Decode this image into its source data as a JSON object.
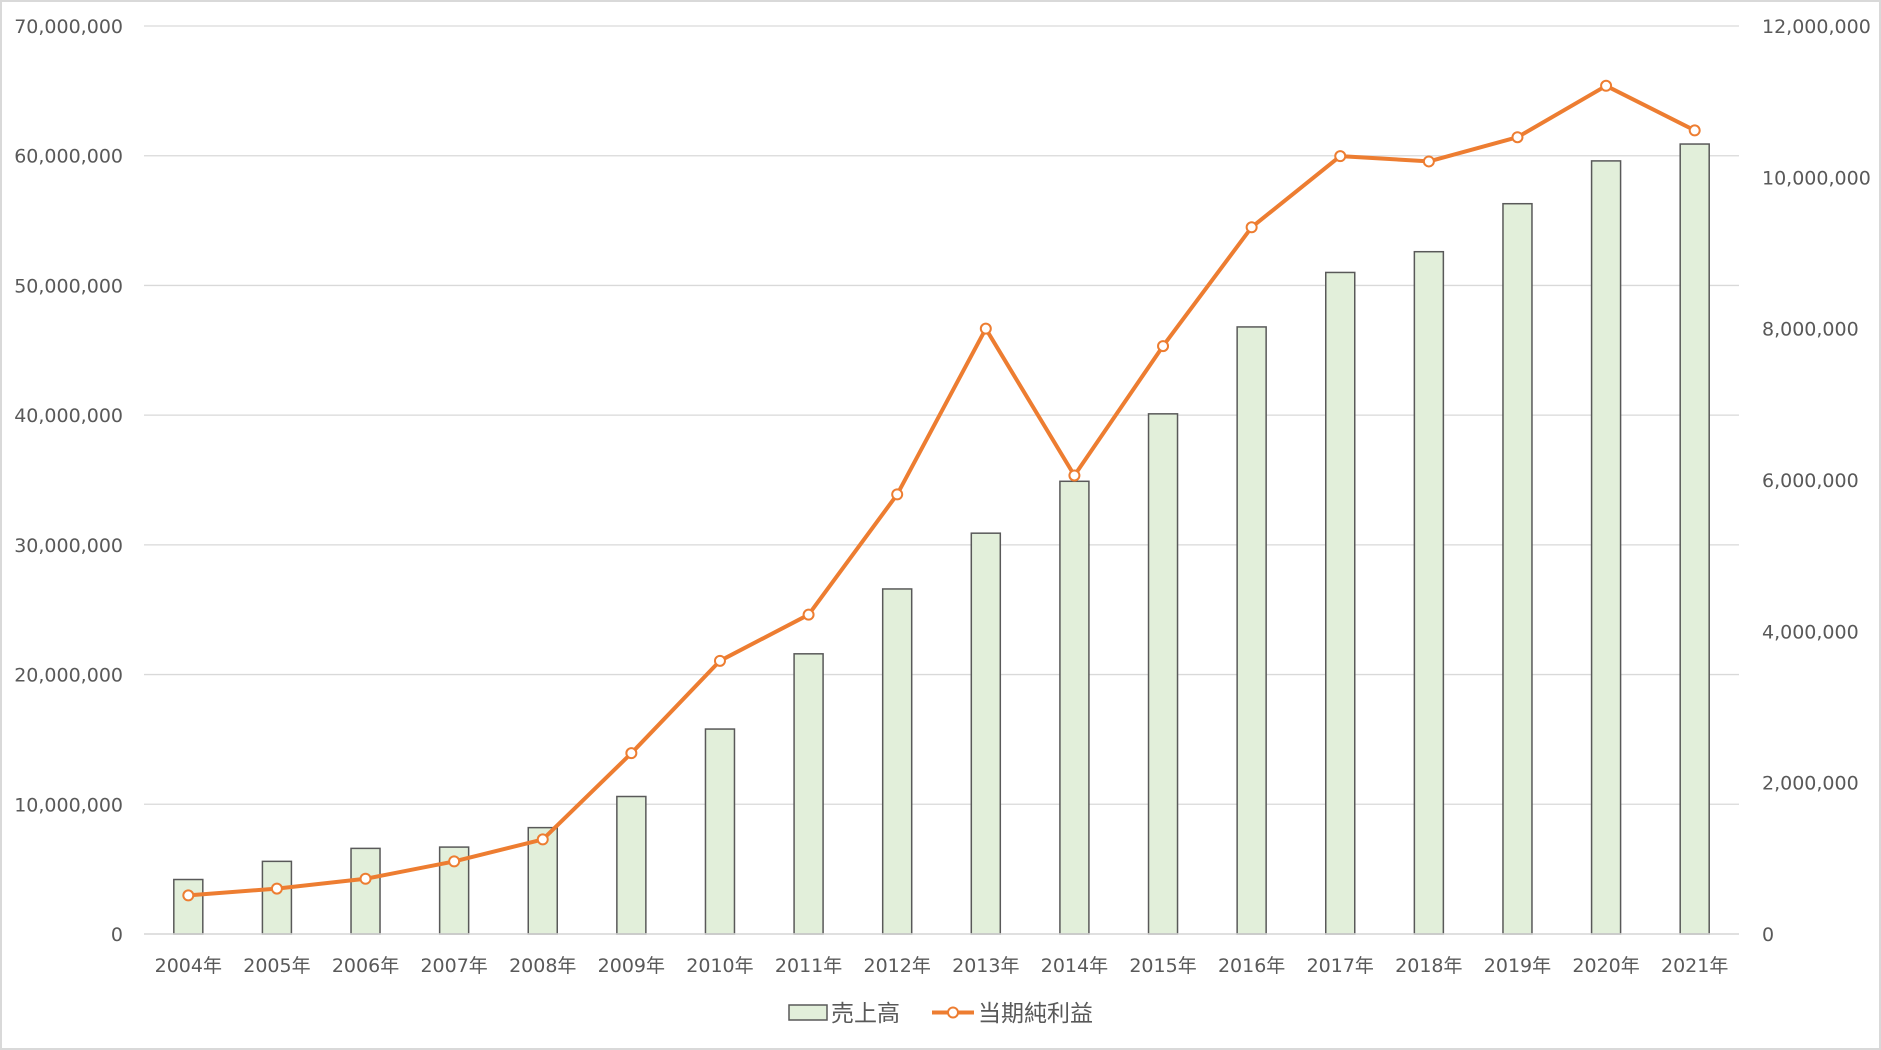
{
  "chart_data": {
    "type": "bar",
    "categories": [
      "2004年",
      "2005年",
      "2006年",
      "2007年",
      "2008年",
      "2009年",
      "2010年",
      "2011年",
      "2012年",
      "2013年",
      "2014年",
      "2015年",
      "2016年",
      "2017年",
      "2018年",
      "2019年",
      "2020年",
      "2021年"
    ],
    "series": [
      {
        "name": "売上高",
        "type": "bar",
        "axis": "left",
        "color": "#e2efda",
        "stroke": "#595959",
        "values": [
          4200000,
          5600000,
          6600000,
          6700000,
          8200000,
          10600000,
          15800000,
          21600000,
          26600000,
          30900000,
          34900000,
          40100000,
          46800000,
          51000000,
          52600000,
          56300000,
          59600000,
          60900000
        ]
      },
      {
        "name": "当期純利益",
        "type": "line",
        "axis": "right",
        "color": "#ed7d31",
        "values": [
          510000,
          600000,
          730000,
          960000,
          1250000,
          2390000,
          3610000,
          4220000,
          5810000,
          8000000,
          6060000,
          7770000,
          9340000,
          10280000,
          10210000,
          10530000,
          11210000,
          10620000
        ]
      }
    ],
    "y_left": {
      "min": 0,
      "max": 70000000,
      "ticks": [
        "0",
        "10,000,000",
        "20,000,000",
        "30,000,000",
        "40,000,000",
        "50,000,000",
        "60,000,000",
        "70,000,000"
      ]
    },
    "y_right": {
      "min": 0,
      "max": 12000000,
      "ticks": [
        "0",
        "2,000,000",
        "4,000,000",
        "6,000,000",
        "8,000,000",
        "10,000,000",
        "12,000,000"
      ]
    },
    "grid": true,
    "legend": {
      "position": "bottom",
      "items": [
        "売上高",
        "当期純利益"
      ]
    }
  }
}
